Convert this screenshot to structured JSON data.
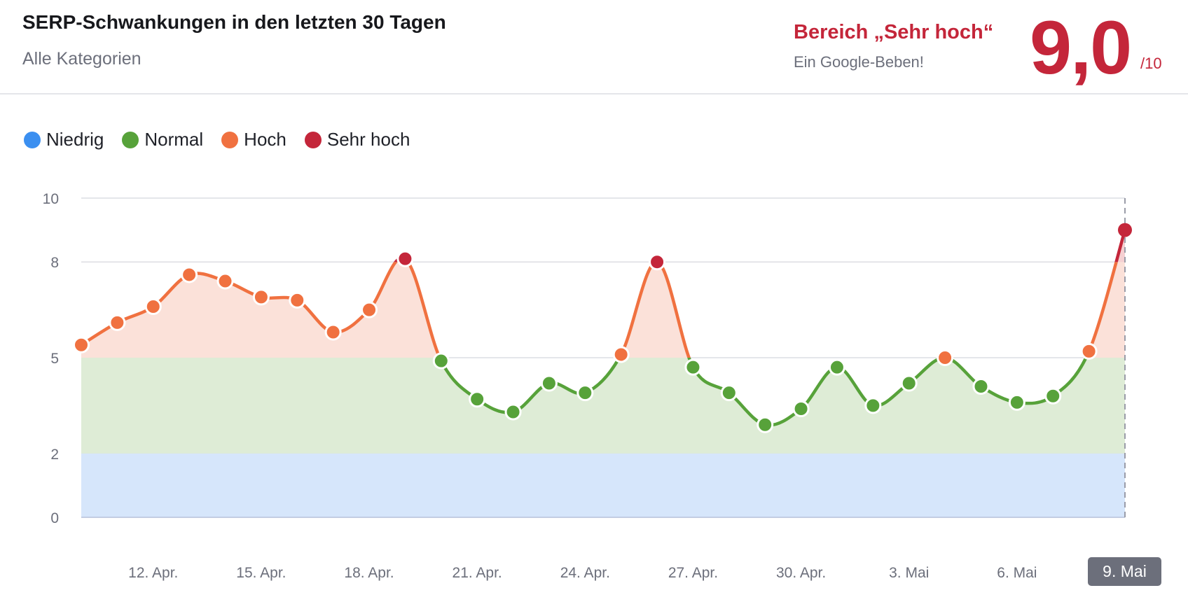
{
  "header": {
    "title": "SERP-Schwankungen in den letzten 30 Tagen",
    "subtitle": "Alle Kategorien",
    "range_label": "Bereich „Sehr hoch“",
    "range_description": "Ein Google-Beben!",
    "score": "9,0",
    "score_max": "/10"
  },
  "legend": [
    {
      "label": "Niedrig",
      "color": "#3b8ff0"
    },
    {
      "label": "Normal",
      "color": "#57a23a"
    },
    {
      "label": "Hoch",
      "color": "#f07140"
    },
    {
      "label": "Sehr hoch",
      "color": "#c4263a"
    }
  ],
  "chart_data": {
    "type": "line",
    "title": "SERP-Schwankungen in den letzten 30 Tagen",
    "ylim": [
      0,
      10
    ],
    "y_ticks": [
      "0",
      "2",
      "5",
      "8",
      "10"
    ],
    "x_tick_labels": [
      "12. Apr.",
      "15. Apr.",
      "18. Apr.",
      "21. Apr.",
      "24. Apr.",
      "27. Apr.",
      "30. Apr.",
      "3. Mai",
      "6. Mai"
    ],
    "highlighted_x_label": "9. Mai",
    "grid": true,
    "legend_position": "top-left",
    "bands": [
      {
        "name": "Niedrig",
        "from": 0,
        "to": 2,
        "color": "#3b8ff0",
        "fill": "#d6e6fb"
      },
      {
        "name": "Normal",
        "from": 2,
        "to": 5,
        "color": "#57a23a",
        "fill": "#deecd6"
      },
      {
        "name": "Hoch",
        "from": 5,
        "to": 8,
        "color": "#f07140",
        "fill": "#fbe1d9"
      },
      {
        "name": "Sehr hoch",
        "from": 8,
        "to": 10,
        "color": "#c4263a",
        "fill": "#f5d0d2"
      }
    ],
    "x": [
      "10. Apr.",
      "11. Apr.",
      "12. Apr.",
      "13. Apr.",
      "14. Apr.",
      "15. Apr.",
      "16. Apr.",
      "17. Apr.",
      "18. Apr.",
      "19. Apr.",
      "20. Apr.",
      "21. Apr.",
      "22. Apr.",
      "23. Apr.",
      "24. Apr.",
      "25. Apr.",
      "26. Apr.",
      "27. Apr.",
      "28. Apr.",
      "29. Apr.",
      "30. Apr.",
      "1. Mai",
      "2. Mai",
      "3. Mai",
      "4. Mai",
      "5. Mai",
      "6. Mai",
      "7. Mai",
      "8. Mai",
      "9. Mai"
    ],
    "values": [
      5.4,
      6.1,
      6.6,
      7.6,
      7.4,
      6.9,
      6.8,
      5.8,
      6.5,
      8.1,
      4.9,
      3.7,
      3.3,
      4.2,
      3.9,
      5.1,
      8.0,
      4.7,
      3.9,
      2.9,
      3.4,
      4.7,
      3.5,
      4.2,
      5.0,
      4.1,
      3.6,
      3.8,
      5.2,
      9.0
    ]
  }
}
